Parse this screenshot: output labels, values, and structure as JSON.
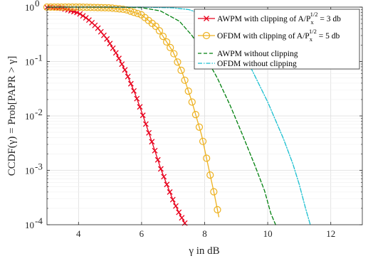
{
  "chart_data": {
    "type": "line",
    "title": "",
    "xlabel": "γ in dB",
    "ylabel": "CCDF(γ) = Prob[PAPR > γ]",
    "xlim": [
      3,
      13
    ],
    "ylim": [
      0.0001,
      1
    ],
    "yscale": "log",
    "grid": true,
    "legend_position": "top-right",
    "x_ticks": [
      {
        "value": 4,
        "label": "4"
      },
      {
        "value": 6,
        "label": "6"
      },
      {
        "value": 8,
        "label": "8"
      },
      {
        "value": 10,
        "label": "10"
      },
      {
        "value": 12,
        "label": "12"
      }
    ],
    "y_ticks": [
      {
        "value": 1,
        "base": "10",
        "exp": "0"
      },
      {
        "value": 0.1,
        "base": "10",
        "exp": "-1"
      },
      {
        "value": 0.01,
        "base": "10",
        "exp": "-2"
      },
      {
        "value": 0.001,
        "base": "10",
        "exp": "-3"
      },
      {
        "value": 0.0001,
        "base": "10",
        "exp": "-4"
      }
    ],
    "series": [
      {
        "name": "AWPM with clipping of A/Px^{1/2} = 3 db",
        "legend": {
          "prefix": "AWPM with clipping of A/P",
          "sub": "x",
          "sup": "1/2",
          "suffix": " = 3 db"
        },
        "color": "#e8001c",
        "line_style": "solid",
        "marker": "x",
        "x": [
          3.0,
          3.5,
          4.0,
          4.3,
          4.6,
          4.9,
          5.2,
          5.5,
          5.8,
          6.0,
          6.2,
          6.4,
          6.6,
          6.8,
          7.0,
          7.2,
          7.4
        ],
        "y": [
          0.99,
          0.95,
          0.78,
          0.6,
          0.42,
          0.26,
          0.14,
          0.065,
          0.025,
          0.012,
          0.0055,
          0.0025,
          0.0011,
          0.00055,
          0.00028,
          0.00016,
          0.0001
        ]
      },
      {
        "name": "OFDM with clipping of A/Px^{1/2} = 5 db",
        "legend": {
          "prefix": "OFDM with clipping of A/P",
          "sub": "x",
          "sup": "1/2",
          "suffix": " = 5 db"
        },
        "color": "#edb120",
        "line_style": "solid",
        "marker": "o",
        "x": [
          3.0,
          4.0,
          5.0,
          5.5,
          6.0,
          6.5,
          7.0,
          7.3,
          7.6,
          7.9,
          8.1,
          8.3,
          8.45
        ],
        "y": [
          1.0,
          1.0,
          0.97,
          0.9,
          0.72,
          0.42,
          0.15,
          0.06,
          0.018,
          0.0045,
          0.0013,
          0.00038,
          0.00014
        ]
      },
      {
        "name": "AWPM without clipping",
        "color": "#00800d",
        "line_style": "dashed",
        "marker": "none",
        "x": [
          3.0,
          5.0,
          6.0,
          6.6,
          7.2,
          7.6,
          8.0,
          8.4,
          8.8,
          9.2,
          9.6,
          9.9,
          10.1,
          10.25
        ],
        "y": [
          1.0,
          1.0,
          0.98,
          0.85,
          0.55,
          0.3,
          0.13,
          0.05,
          0.016,
          0.0045,
          0.0012,
          0.00042,
          0.00016,
          0.0001
        ]
      },
      {
        "name": "OFDM without clipping",
        "color": "#17becf",
        "line_style": "dashdot",
        "marker": "none",
        "x": [
          3.0,
          6.0,
          7.0,
          7.5,
          8.0,
          8.5,
          9.0,
          9.5,
          10.0,
          10.5,
          10.8,
          11.0,
          11.2,
          11.35
        ],
        "y": [
          1.0,
          1.0,
          0.97,
          0.9,
          0.72,
          0.43,
          0.2,
          0.07,
          0.018,
          0.0038,
          0.0013,
          0.00055,
          0.0002,
          0.0001
        ]
      }
    ]
  }
}
